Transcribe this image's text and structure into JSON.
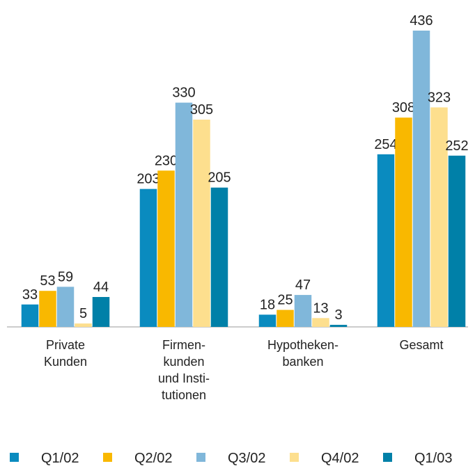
{
  "chart_data": {
    "type": "bar",
    "categories": [
      "Private\nKunden",
      "Firmen-\nkunden\nund Insti-\ntutionen",
      "Hypotheken-\nbanken",
      "Gesamt"
    ],
    "series": [
      {
        "name": "Q1/02",
        "color": "#0a8bbf",
        "values": [
          33,
          203,
          18,
          254
        ]
      },
      {
        "name": "Q2/02",
        "color": "#f9b800",
        "values": [
          53,
          230,
          25,
          308
        ]
      },
      {
        "name": "Q3/02",
        "color": "#80b7da",
        "values": [
          59,
          330,
          47,
          436
        ]
      },
      {
        "name": "Q4/02",
        "color": "#fddf8e",
        "values": [
          5,
          305,
          13,
          323
        ]
      },
      {
        "name": "Q1/03",
        "color": "#0080a8",
        "values": [
          44,
          205,
          3,
          252
        ]
      }
    ]
  }
}
